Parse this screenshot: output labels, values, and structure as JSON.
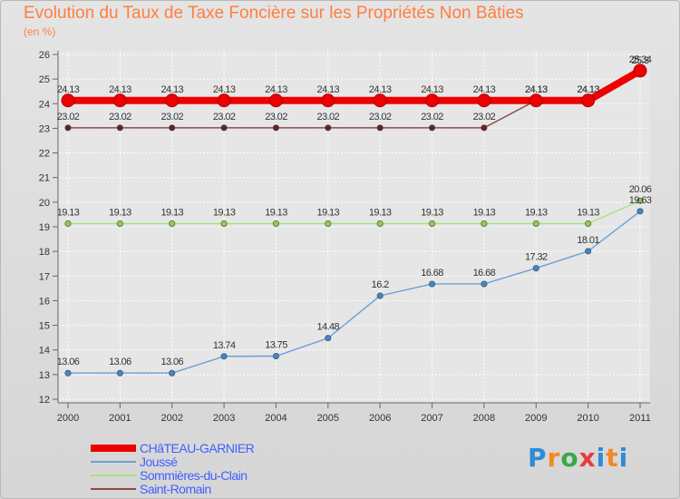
{
  "title": "Evolution du Taux de Taxe Foncière sur les Propriétés Non Bâties",
  "ylabel_unit": "(en %)",
  "brand": "Proxiti",
  "chart_data": {
    "type": "line",
    "title": "Evolution du Taux de Taxe Foncière sur les Propriétés Non Bâties",
    "ylabel": "(en %)",
    "xlabel": "",
    "x": [
      "2000",
      "2001",
      "2002",
      "2003",
      "2004",
      "2005",
      "2006",
      "2007",
      "2008",
      "2009",
      "2010",
      "2011"
    ],
    "ylim": [
      12,
      26
    ],
    "yticks": [
      12,
      13,
      14,
      15,
      16,
      17,
      18,
      19,
      20,
      21,
      22,
      23,
      24,
      25,
      26
    ],
    "grid": true,
    "series": [
      {
        "name": "CHâTEAU-GARNIER",
        "color": "#ee0000",
        "emphasis": true,
        "values": [
          24.13,
          24.13,
          24.13,
          24.13,
          24.13,
          24.13,
          24.13,
          24.13,
          24.13,
          24.13,
          24.13,
          25.34
        ],
        "labels": [
          "24.13",
          "24.13",
          "24.13",
          "24.13",
          "24.13",
          "24.13",
          "24.13",
          "24.13",
          "24.13",
          "24.13",
          "24.13",
          "25.34"
        ]
      },
      {
        "name": "Joussé",
        "color": "#6aa0d8",
        "point_color": "#3f86cc",
        "values": [
          13.06,
          13.06,
          13.06,
          13.74,
          13.75,
          14.48,
          16.2,
          16.68,
          16.68,
          17.32,
          18.01,
          19.63
        ],
        "labels": [
          "13.06",
          "13.06",
          "13.06",
          "13.74",
          "13.75",
          "14.48",
          "16.2",
          "16.68",
          "16.68",
          "17.32",
          "18.01",
          "19.63"
        ]
      },
      {
        "name": "Sommières-du-Clain",
        "color": "#a8e080",
        "point_color": "#88d050",
        "values": [
          19.13,
          19.13,
          19.13,
          19.13,
          19.13,
          19.13,
          19.13,
          19.13,
          19.13,
          19.13,
          19.13,
          20.06
        ],
        "labels": [
          "19.13",
          "19.13",
          "19.13",
          "19.13",
          "19.13",
          "19.13",
          "19.13",
          "19.13",
          "19.13",
          "19.13",
          "19.13",
          "20.06"
        ]
      },
      {
        "name": "Saint-Romain",
        "color": "#8a4a4a",
        "point_color": "#6a2020",
        "values": [
          23.02,
          23.02,
          23.02,
          23.02,
          23.02,
          23.02,
          23.02,
          23.02,
          23.02,
          24.13,
          24.13,
          25.3
        ],
        "labels": [
          "23.02",
          "23.02",
          "23.02",
          "23.02",
          "23.02",
          "23.02",
          "23.02",
          "23.02",
          "23.02",
          "24.13",
          "24.13",
          "25.3"
        ]
      }
    ]
  }
}
